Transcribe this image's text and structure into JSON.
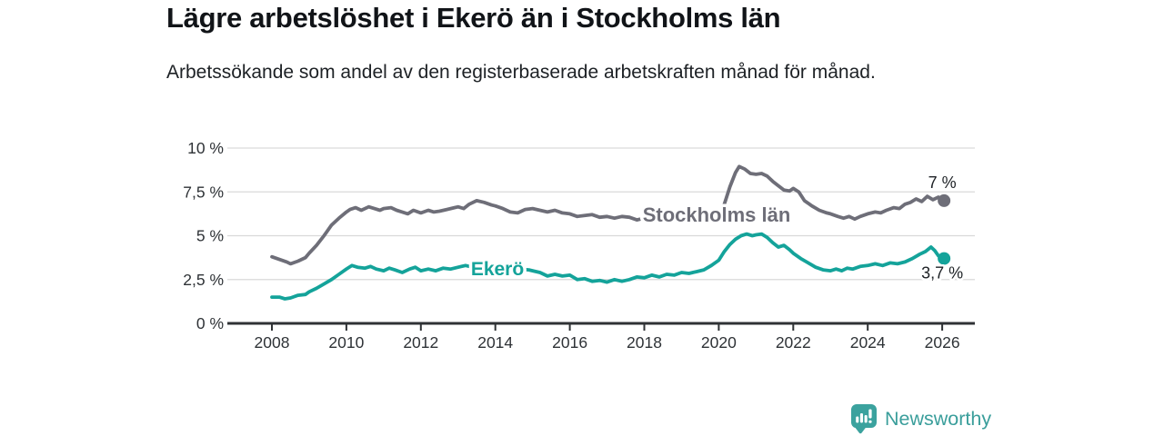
{
  "header": {
    "title": "Lägre arbetslöshet i Ekerö än i Stockholms län",
    "subtitle": "Arbetssökande som andel av den registerbaserade arbetskraften månad för månad."
  },
  "footer": {
    "brand": "Newsworthy",
    "brand_color": "#3a9e9b",
    "logo_icon": "bar-chart-pin-icon"
  },
  "chart_data": {
    "type": "line",
    "unit": "%",
    "grid": true,
    "legend_position": "inline-labels",
    "xlim": [
      2007.8,
      2026.9
    ],
    "ylim": [
      0,
      10
    ],
    "x_tick_labels": [
      "2008",
      "2010",
      "2012",
      "2014",
      "2016",
      "2018",
      "2020",
      "2022",
      "2024",
      "2026"
    ],
    "x_tick_values": [
      2008,
      2010,
      2012,
      2014,
      2016,
      2018,
      2020,
      2022,
      2024,
      2026
    ],
    "y_tick_labels": [
      "0 %",
      "2,5 %",
      "5 %",
      "7,5 %",
      "10 %"
    ],
    "y_tick_values": [
      0,
      2.5,
      5,
      7.5,
      10
    ],
    "series": [
      {
        "name": "Stockholms län",
        "color": "#6e6e78",
        "end_label": "7 %",
        "points": [
          [
            2008.0,
            3.8
          ],
          [
            2008.2,
            3.65
          ],
          [
            2008.4,
            3.5
          ],
          [
            2008.5,
            3.4
          ],
          [
            2008.7,
            3.55
          ],
          [
            2008.9,
            3.75
          ],
          [
            2009.0,
            4.0
          ],
          [
            2009.2,
            4.45
          ],
          [
            2009.4,
            5.0
          ],
          [
            2009.6,
            5.6
          ],
          [
            2009.8,
            6.0
          ],
          [
            2010.0,
            6.35
          ],
          [
            2010.1,
            6.5
          ],
          [
            2010.25,
            6.6
          ],
          [
            2010.4,
            6.45
          ],
          [
            2010.6,
            6.65
          ],
          [
            2010.75,
            6.55
          ],
          [
            2010.9,
            6.45
          ],
          [
            2011.0,
            6.55
          ],
          [
            2011.2,
            6.6
          ],
          [
            2011.35,
            6.45
          ],
          [
            2011.5,
            6.35
          ],
          [
            2011.65,
            6.25
          ],
          [
            2011.8,
            6.45
          ],
          [
            2012.0,
            6.3
          ],
          [
            2012.2,
            6.45
          ],
          [
            2012.35,
            6.35
          ],
          [
            2012.5,
            6.4
          ],
          [
            2012.7,
            6.5
          ],
          [
            2012.9,
            6.6
          ],
          [
            2013.0,
            6.65
          ],
          [
            2013.15,
            6.55
          ],
          [
            2013.3,
            6.8
          ],
          [
            2013.5,
            7.0
          ],
          [
            2013.7,
            6.9
          ],
          [
            2013.9,
            6.75
          ],
          [
            2014.0,
            6.7
          ],
          [
            2014.2,
            6.55
          ],
          [
            2014.4,
            6.35
          ],
          [
            2014.6,
            6.3
          ],
          [
            2014.8,
            6.5
          ],
          [
            2015.0,
            6.55
          ],
          [
            2015.2,
            6.45
          ],
          [
            2015.4,
            6.35
          ],
          [
            2015.6,
            6.45
          ],
          [
            2015.8,
            6.3
          ],
          [
            2016.0,
            6.25
          ],
          [
            2016.2,
            6.1
          ],
          [
            2016.4,
            6.15
          ],
          [
            2016.6,
            6.2
          ],
          [
            2016.8,
            6.05
          ],
          [
            2017.0,
            6.1
          ],
          [
            2017.2,
            6.0
          ],
          [
            2017.4,
            6.1
          ],
          [
            2017.6,
            6.05
          ],
          [
            2017.8,
            5.9
          ],
          [
            2018.0,
            6.0
          ],
          [
            2018.2,
            5.95
          ],
          [
            2018.4,
            6.0
          ],
          [
            2018.6,
            5.95
          ],
          [
            2018.8,
            5.9
          ],
          [
            2019.0,
            5.95
          ],
          [
            2019.2,
            5.85
          ],
          [
            2019.4,
            5.8
          ],
          [
            2019.6,
            5.85
          ],
          [
            2019.8,
            5.9
          ],
          [
            2020.0,
            6.1
          ],
          [
            2020.15,
            6.8
          ],
          [
            2020.3,
            7.8
          ],
          [
            2020.45,
            8.6
          ],
          [
            2020.55,
            8.95
          ],
          [
            2020.7,
            8.8
          ],
          [
            2020.85,
            8.55
          ],
          [
            2021.0,
            8.5
          ],
          [
            2021.15,
            8.55
          ],
          [
            2021.3,
            8.4
          ],
          [
            2021.45,
            8.1
          ],
          [
            2021.6,
            7.85
          ],
          [
            2021.75,
            7.6
          ],
          [
            2021.9,
            7.55
          ],
          [
            2022.0,
            7.7
          ],
          [
            2022.15,
            7.5
          ],
          [
            2022.3,
            7.0
          ],
          [
            2022.5,
            6.7
          ],
          [
            2022.7,
            6.45
          ],
          [
            2022.9,
            6.3
          ],
          [
            2023.0,
            6.25
          ],
          [
            2023.2,
            6.1
          ],
          [
            2023.35,
            6.0
          ],
          [
            2023.5,
            6.1
          ],
          [
            2023.65,
            5.95
          ],
          [
            2023.8,
            6.1
          ],
          [
            2024.0,
            6.25
          ],
          [
            2024.2,
            6.35
          ],
          [
            2024.35,
            6.3
          ],
          [
            2024.5,
            6.45
          ],
          [
            2024.7,
            6.6
          ],
          [
            2024.85,
            6.55
          ],
          [
            2025.0,
            6.8
          ],
          [
            2025.15,
            6.9
          ],
          [
            2025.3,
            7.1
          ],
          [
            2025.45,
            6.95
          ],
          [
            2025.6,
            7.25
          ],
          [
            2025.75,
            7.05
          ],
          [
            2025.9,
            7.2
          ],
          [
            2026.05,
            7.0
          ]
        ]
      },
      {
        "name": "Ekerö",
        "color": "#14a39a",
        "end_label": "3,7 %",
        "points": [
          [
            2008.0,
            1.5
          ],
          [
            2008.2,
            1.5
          ],
          [
            2008.35,
            1.4
          ],
          [
            2008.5,
            1.45
          ],
          [
            2008.7,
            1.6
          ],
          [
            2008.9,
            1.65
          ],
          [
            2009.0,
            1.8
          ],
          [
            2009.2,
            2.0
          ],
          [
            2009.4,
            2.25
          ],
          [
            2009.6,
            2.5
          ],
          [
            2009.8,
            2.8
          ],
          [
            2010.0,
            3.1
          ],
          [
            2010.15,
            3.3
          ],
          [
            2010.3,
            3.2
          ],
          [
            2010.5,
            3.15
          ],
          [
            2010.65,
            3.25
          ],
          [
            2010.8,
            3.1
          ],
          [
            2011.0,
            3.0
          ],
          [
            2011.15,
            3.15
          ],
          [
            2011.3,
            3.05
          ],
          [
            2011.5,
            2.9
          ],
          [
            2011.7,
            3.1
          ],
          [
            2011.85,
            3.2
          ],
          [
            2012.0,
            3.0
          ],
          [
            2012.2,
            3.1
          ],
          [
            2012.4,
            3.0
          ],
          [
            2012.6,
            3.15
          ],
          [
            2012.8,
            3.1
          ],
          [
            2013.0,
            3.2
          ],
          [
            2013.2,
            3.3
          ],
          [
            2013.4,
            3.2
          ],
          [
            2013.6,
            3.25
          ],
          [
            2013.8,
            3.15
          ],
          [
            2014.0,
            3.1
          ],
          [
            2014.3,
            3.2
          ],
          [
            2014.6,
            3.1
          ],
          [
            2014.9,
            3.05
          ],
          [
            2015.0,
            3.0
          ],
          [
            2015.2,
            2.9
          ],
          [
            2015.4,
            2.7
          ],
          [
            2015.6,
            2.8
          ],
          [
            2015.8,
            2.7
          ],
          [
            2016.0,
            2.75
          ],
          [
            2016.2,
            2.5
          ],
          [
            2016.4,
            2.55
          ],
          [
            2016.6,
            2.4
          ],
          [
            2016.8,
            2.45
          ],
          [
            2017.0,
            2.35
          ],
          [
            2017.2,
            2.5
          ],
          [
            2017.4,
            2.4
          ],
          [
            2017.6,
            2.5
          ],
          [
            2017.8,
            2.65
          ],
          [
            2018.0,
            2.6
          ],
          [
            2018.2,
            2.75
          ],
          [
            2018.4,
            2.65
          ],
          [
            2018.6,
            2.8
          ],
          [
            2018.8,
            2.75
          ],
          [
            2019.0,
            2.9
          ],
          [
            2019.2,
            2.85
          ],
          [
            2019.4,
            2.95
          ],
          [
            2019.6,
            3.05
          ],
          [
            2019.8,
            3.3
          ],
          [
            2020.0,
            3.6
          ],
          [
            2020.15,
            4.1
          ],
          [
            2020.3,
            4.5
          ],
          [
            2020.45,
            4.8
          ],
          [
            2020.6,
            5.0
          ],
          [
            2020.75,
            5.1
          ],
          [
            2020.9,
            5.0
          ],
          [
            2021.0,
            5.05
          ],
          [
            2021.15,
            5.1
          ],
          [
            2021.3,
            4.9
          ],
          [
            2021.45,
            4.6
          ],
          [
            2021.6,
            4.35
          ],
          [
            2021.75,
            4.45
          ],
          [
            2021.9,
            4.2
          ],
          [
            2022.0,
            4.0
          ],
          [
            2022.2,
            3.7
          ],
          [
            2022.4,
            3.45
          ],
          [
            2022.6,
            3.2
          ],
          [
            2022.8,
            3.05
          ],
          [
            2023.0,
            3.0
          ],
          [
            2023.15,
            3.1
          ],
          [
            2023.3,
            3.0
          ],
          [
            2023.45,
            3.15
          ],
          [
            2023.6,
            3.1
          ],
          [
            2023.8,
            3.25
          ],
          [
            2024.0,
            3.3
          ],
          [
            2024.2,
            3.4
          ],
          [
            2024.4,
            3.3
          ],
          [
            2024.6,
            3.45
          ],
          [
            2024.8,
            3.4
          ],
          [
            2025.0,
            3.5
          ],
          [
            2025.2,
            3.7
          ],
          [
            2025.4,
            3.95
          ],
          [
            2025.55,
            4.1
          ],
          [
            2025.7,
            4.35
          ],
          [
            2025.8,
            4.15
          ],
          [
            2025.9,
            3.85
          ],
          [
            2026.05,
            3.7
          ]
        ]
      }
    ]
  }
}
